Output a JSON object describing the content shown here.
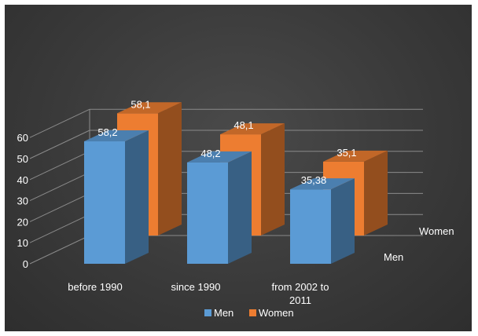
{
  "chart_data": {
    "type": "bar",
    "categories": [
      "before 1990",
      "since 1990",
      "from 2002 to 2011"
    ],
    "series": [
      {
        "name": "Men",
        "values": [
          58.2,
          48.2,
          35.38
        ],
        "labels": [
          "58,2",
          "48,2",
          "35,38"
        ],
        "color": "#5b9bd5"
      },
      {
        "name": "Women",
        "values": [
          58.1,
          48.1,
          35.1
        ],
        "labels": [
          "58,1",
          "48,1",
          "35,1"
        ],
        "color": "#ed7d31"
      }
    ],
    "yticks": [
      "0",
      "10",
      "20",
      "30",
      "40",
      "50",
      "60"
    ],
    "ylim": [
      0,
      60
    ],
    "depth_labels": [
      "Men",
      "Women"
    ],
    "grid": true,
    "legend": "bottom",
    "title": "",
    "xlabel": "",
    "ylabel": ""
  }
}
